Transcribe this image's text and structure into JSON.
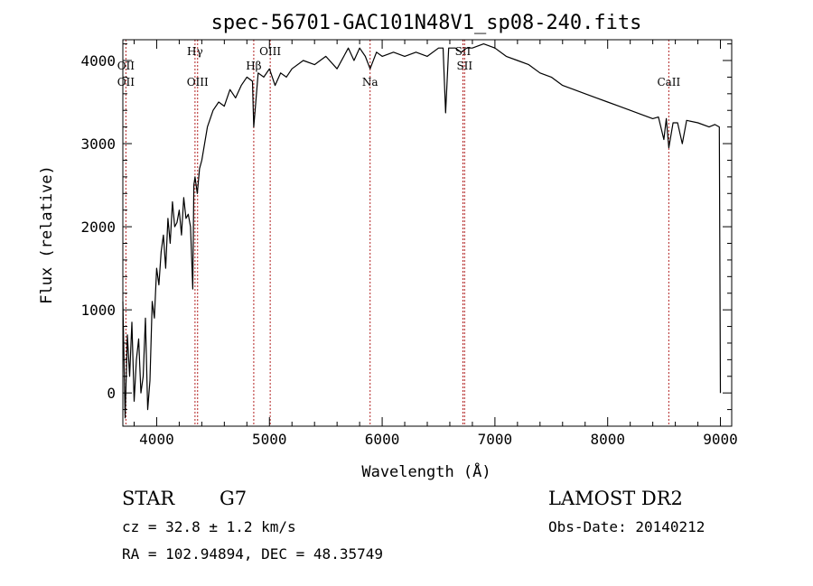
{
  "chart_data": {
    "type": "line",
    "title": "spec-56701-GAC101N48V1_sp08-240.fits",
    "xlabel": "Wavelength (Å)",
    "ylabel": "Flux (relative)",
    "xlim": [
      3700,
      9100
    ],
    "ylim": [
      -400,
      4250
    ],
    "xticks": [
      4000,
      5000,
      6000,
      7000,
      8000,
      9000
    ],
    "yticks": [
      0,
      1000,
      2000,
      3000,
      4000
    ],
    "series": [
      {
        "x": [
          3700,
          3720,
          3740,
          3760,
          3780,
          3800,
          3820,
          3840,
          3860,
          3880,
          3900,
          3920,
          3940,
          3960,
          3980,
          4000,
          4020,
          4040,
          4060,
          4080,
          4100,
          4120,
          4140,
          4160,
          4180,
          4200,
          4220,
          4240,
          4260,
          4280,
          4300,
          4320,
          4330,
          4340,
          4360,
          4380,
          4400,
          4450,
          4500,
          4550,
          4600,
          4650,
          4700,
          4750,
          4800,
          4850,
          4861,
          4900,
          4950,
          5000,
          5050,
          5100,
          5150,
          5200,
          5300,
          5400,
          5500,
          5600,
          5700,
          5750,
          5800,
          5850,
          5893,
          5950,
          6000,
          6100,
          6200,
          6300,
          6400,
          6500,
          6540,
          6563,
          6590,
          6650,
          6700,
          6750,
          6800,
          6900,
          7000,
          7100,
          7200,
          7300,
          7400,
          7500,
          7600,
          7700,
          7800,
          7900,
          8000,
          8100,
          8200,
          8300,
          8400,
          8450,
          8498,
          8520,
          8542,
          8580,
          8620,
          8662,
          8700,
          8800,
          8900,
          8950,
          8990,
          9000
        ],
        "y": [
          1100,
          -300,
          700,
          200,
          850,
          -100,
          400,
          650,
          0,
          200,
          900,
          -200,
          150,
          1100,
          900,
          1500,
          1300,
          1700,
          1900,
          1500,
          2100,
          1800,
          2300,
          2000,
          2050,
          2200,
          1900,
          2350,
          2100,
          2150,
          2000,
          1250,
          2500,
          2600,
          2400,
          2700,
          2800,
          3200,
          3400,
          3500,
          3450,
          3650,
          3550,
          3700,
          3800,
          3750,
          3200,
          3850,
          3800,
          3900,
          3700,
          3850,
          3800,
          3900,
          4000,
          3950,
          4050,
          3900,
          4150,
          4000,
          4150,
          4050,
          3900,
          4100,
          4050,
          4100,
          4050,
          4100,
          4050,
          4150,
          4150,
          3370,
          4150,
          4150,
          4100,
          4150,
          4150,
          4200,
          4150,
          4050,
          4000,
          3950,
          3850,
          3800,
          3700,
          3650,
          3600,
          3550,
          3500,
          3450,
          3400,
          3350,
          3300,
          3320,
          3050,
          3300,
          2950,
          3250,
          3250,
          3000,
          3280,
          3250,
          3200,
          3230,
          3200,
          0
        ]
      }
    ],
    "line_markers": [
      {
        "x": 3727,
        "label": "OII",
        "level": "upper"
      },
      {
        "x": 3727,
        "label": "OII",
        "level": "lower"
      },
      {
        "x": 4340,
        "label": "Hγ",
        "level": "top"
      },
      {
        "x": 4363,
        "label": "OIII",
        "level": "lower"
      },
      {
        "x": 4861,
        "label": "Hβ",
        "level": "upper"
      },
      {
        "x": 5007,
        "label": "OIII",
        "level": "top"
      },
      {
        "x": 5893,
        "label": "Na",
        "level": "lower"
      },
      {
        "x": 6716,
        "label": "SII",
        "level": "top"
      },
      {
        "x": 6731,
        "label": "SII",
        "level": "upper"
      },
      {
        "x": 8542,
        "label": "CaII",
        "level": "lower"
      }
    ]
  },
  "footer": {
    "object_class": "STAR",
    "subclass": "G7",
    "survey": "LAMOST DR2",
    "redshift": "cz = 32.8 ± 1.2 km/s",
    "obs_date": "Obs-Date: 20140212",
    "coordinates": "RA = 102.94894, DEC =  48.35749"
  }
}
